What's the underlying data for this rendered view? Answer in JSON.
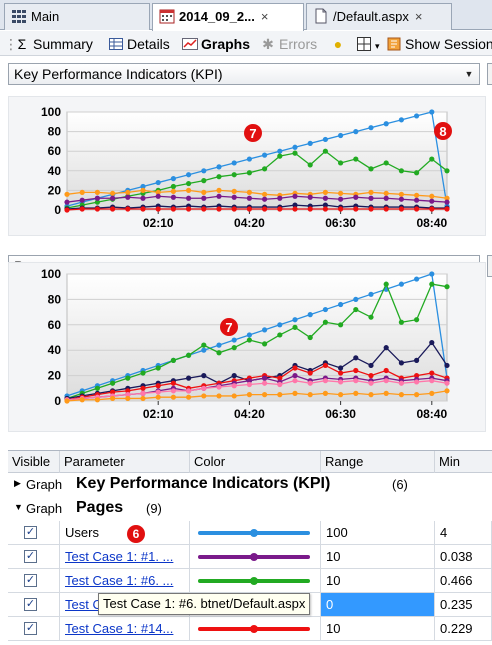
{
  "tabs": [
    {
      "label": "Main",
      "icon": "grid-icon"
    },
    {
      "label": "2014_09_2...",
      "icon": "calendar-icon",
      "active": true,
      "close": "×"
    },
    {
      "label": "/Default.aspx",
      "icon": "page-icon",
      "close": "×"
    }
  ],
  "toolbar": {
    "summary": "Summary",
    "details": "Details",
    "graphs": "Graphs",
    "errors": "Errors",
    "show_session": "Show Session"
  },
  "select1": {
    "value": "Key Performance Indicators (KPI)"
  },
  "select2": {
    "value": "Pages"
  },
  "colors": {
    "users": "#2b8fe0",
    "green": "#22aa22",
    "orange": "#ff9a1a",
    "purple": "#7a1a8a",
    "navy": "#1a1a5a",
    "red": "#ee1111",
    "pink": "#ff77aa",
    "badge": "#e11010"
  },
  "chart_data": [
    {
      "type": "line",
      "x_ticks": [
        "02:10",
        "04:20",
        "06:30",
        "08:40"
      ],
      "ylim": [
        0,
        100
      ],
      "y_ticks": [
        "100",
        "80",
        "60",
        "40",
        "20",
        "0"
      ],
      "markers": [
        "7",
        "8"
      ],
      "series": [
        {
          "color_key": "users",
          "values": [
            4,
            8,
            12,
            16,
            20,
            24,
            28,
            32,
            36,
            40,
            44,
            48,
            52,
            56,
            60,
            64,
            68,
            72,
            76,
            80,
            84,
            88,
            92,
            96,
            100,
            4
          ]
        },
        {
          "color_key": "green",
          "values": [
            2,
            5,
            8,
            11,
            14,
            17,
            20,
            24,
            27,
            30,
            34,
            36,
            38,
            42,
            55,
            58,
            46,
            60,
            48,
            52,
            42,
            48,
            40,
            38,
            52,
            40
          ]
        },
        {
          "color_key": "orange",
          "values": [
            16,
            18,
            18,
            17,
            18,
            20,
            18,
            19,
            20,
            18,
            20,
            19,
            18,
            16,
            15,
            17,
            16,
            18,
            17,
            16,
            18,
            17,
            16,
            15,
            14,
            12
          ]
        },
        {
          "color_key": "purple",
          "values": [
            8,
            10,
            12,
            12,
            13,
            12,
            14,
            13,
            12,
            12,
            14,
            13,
            12,
            11,
            12,
            14,
            13,
            12,
            11,
            13,
            12,
            12,
            11,
            10,
            9,
            8
          ]
        },
        {
          "color_key": "navy",
          "values": [
            1,
            2,
            2,
            3,
            2,
            3,
            4,
            3,
            4,
            3,
            4,
            3,
            3,
            3,
            3,
            5,
            4,
            5,
            3,
            4,
            3,
            3,
            3,
            3,
            2,
            2
          ]
        },
        {
          "color_key": "red",
          "values": [
            0,
            1,
            1,
            1,
            1,
            1,
            1,
            1,
            1,
            1,
            1,
            1,
            1,
            1,
            1,
            1,
            1,
            1,
            1,
            1,
            1,
            1,
            1,
            1,
            1,
            1
          ]
        }
      ]
    },
    {
      "type": "line",
      "x_ticks": [
        "02:10",
        "04:20",
        "06:30",
        "08:40"
      ],
      "ylim": [
        0,
        100
      ],
      "y_ticks": [
        "100",
        "80",
        "60",
        "40",
        "20",
        "0"
      ],
      "markers": [
        "7"
      ],
      "series": [
        {
          "color_key": "users",
          "values": [
            4,
            8,
            12,
            16,
            20,
            24,
            28,
            32,
            36,
            40,
            44,
            48,
            52,
            56,
            60,
            64,
            68,
            72,
            76,
            80,
            84,
            88,
            92,
            96,
            100,
            18
          ]
        },
        {
          "color_key": "green",
          "values": [
            2,
            6,
            10,
            14,
            18,
            22,
            26,
            32,
            36,
            44,
            38,
            42,
            48,
            45,
            52,
            58,
            50,
            62,
            60,
            72,
            66,
            92,
            62,
            64,
            92,
            90
          ]
        },
        {
          "color_key": "navy",
          "values": [
            2,
            4,
            6,
            8,
            10,
            12,
            14,
            16,
            18,
            20,
            14,
            20,
            16,
            18,
            20,
            28,
            24,
            30,
            26,
            34,
            28,
            42,
            30,
            32,
            46,
            28
          ]
        },
        {
          "color_key": "red",
          "values": [
            1,
            3,
            5,
            7,
            8,
            10,
            12,
            14,
            10,
            12,
            14,
            16,
            18,
            20,
            18,
            26,
            22,
            28,
            22,
            24,
            20,
            24,
            18,
            20,
            22,
            18
          ]
        },
        {
          "color_key": "purple",
          "values": [
            1,
            2,
            3,
            4,
            5,
            6,
            8,
            10,
            8,
            10,
            12,
            14,
            16,
            18,
            15,
            20,
            16,
            18,
            17,
            18,
            16,
            18,
            16,
            17,
            18,
            16
          ]
        },
        {
          "color_key": "pink",
          "values": [
            1,
            2,
            3,
            4,
            5,
            6,
            7,
            8,
            8,
            10,
            11,
            12,
            13,
            14,
            13,
            16,
            14,
            16,
            15,
            16,
            14,
            16,
            14,
            15,
            16,
            14
          ]
        },
        {
          "color_key": "orange",
          "values": [
            0,
            1,
            1,
            2,
            2,
            2,
            3,
            3,
            3,
            4,
            4,
            4,
            5,
            5,
            5,
            6,
            5,
            6,
            5,
            6,
            5,
            6,
            5,
            5,
            6,
            8
          ]
        }
      ]
    }
  ],
  "grid": {
    "headers": [
      "Visible",
      "Parameter",
      "Color",
      "Range",
      "Min"
    ],
    "group_label": "Graph",
    "groups": [
      {
        "title": "Key Performance Indicators (KPI)",
        "count": "(6)",
        "expanded": false
      },
      {
        "title": "Pages",
        "count": "(9)",
        "expanded": true
      }
    ],
    "rows": [
      {
        "name": "Users",
        "link": false,
        "color_key": "users",
        "range": "100",
        "min": "4",
        "badge": "6"
      },
      {
        "name": "Test Case 1: #1. ...",
        "link": true,
        "color_key": "purple",
        "range": "10",
        "min": "0.038"
      },
      {
        "name": "Test Case 1: #6. ...",
        "link": true,
        "color_key": "green",
        "range": "10",
        "min": "0.466"
      },
      {
        "name": "Test C",
        "link": true,
        "color_key": "orange",
        "range": "0",
        "min": "0.235",
        "highlight": true
      },
      {
        "name": "Test Case 1: #14...",
        "link": true,
        "color_key": "red",
        "range": "10",
        "min": "0.229"
      }
    ],
    "check_mark": "✓"
  },
  "tooltip": "Test Case 1: #6. btnet/Default.aspx"
}
